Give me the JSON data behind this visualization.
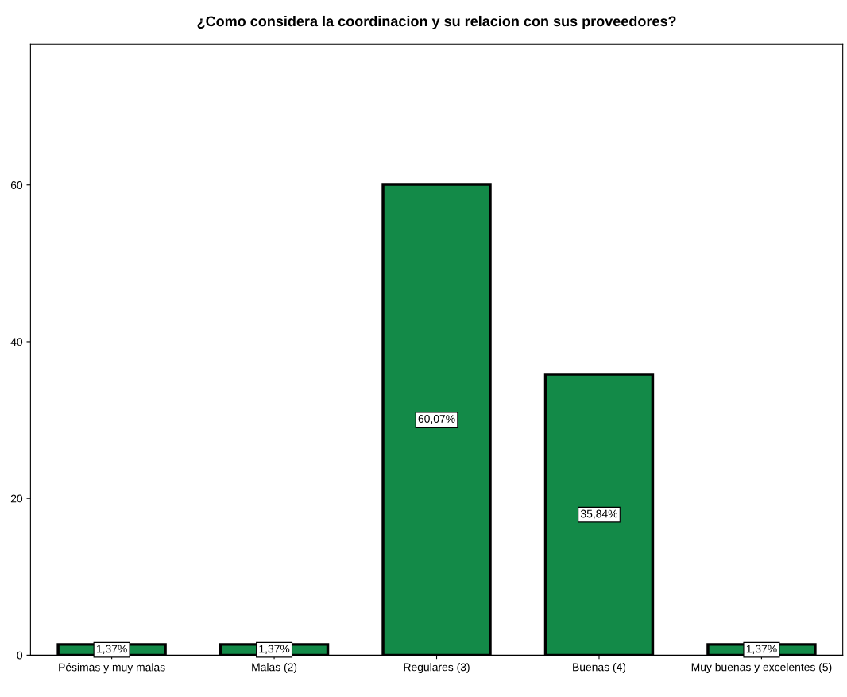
{
  "chart_data": {
    "type": "bar",
    "title": "¿Como considera la coordinacion y su relacion con sus proveedores?",
    "categories": [
      "Pésimas y muy malas",
      "Malas (2)",
      "Regulares (3)",
      "Buenas (4)",
      "Muy buenas y excelentes (5)"
    ],
    "values": [
      1.37,
      1.37,
      60.07,
      35.84,
      1.37
    ],
    "value_labels": [
      "1,37%",
      "1,37%",
      "60,07%",
      "35,84%",
      "1,37%"
    ],
    "color": "#138a48",
    "ylim": [
      0,
      78
    ],
    "yticks": [
      0,
      20,
      40,
      60
    ],
    "grid": false
  }
}
